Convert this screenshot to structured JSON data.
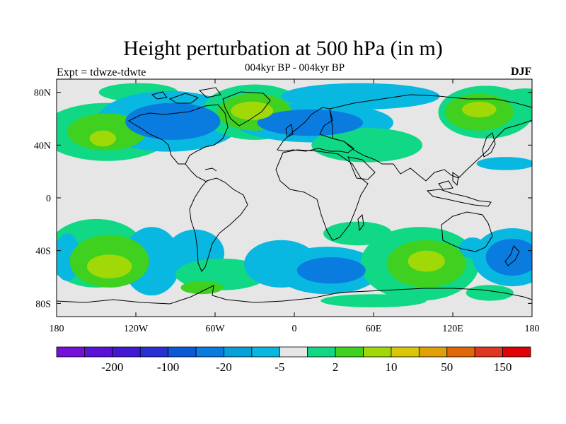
{
  "title": "Height perturbation at 500 hPa (in m)",
  "subtitle": "004kyr BP - 004kyr BP",
  "left_label": "Expt = tdwze-tdwte",
  "right_label": "DJF",
  "map": {
    "lon_range": [
      -180,
      180
    ],
    "lat_range": [
      -90,
      90
    ],
    "lat_ticks": [
      {
        "value": 80,
        "label": "80N"
      },
      {
        "value": 40,
        "label": "40N"
      },
      {
        "value": 0,
        "label": "0"
      },
      {
        "value": -40,
        "label": "40S"
      },
      {
        "value": -80,
        "label": "80S"
      }
    ],
    "lon_ticks": [
      {
        "value": -180,
        "label": "180"
      },
      {
        "value": -120,
        "label": "120W"
      },
      {
        "value": -60,
        "label": "60W"
      },
      {
        "value": 0,
        "label": "0"
      },
      {
        "value": 60,
        "label": "60E"
      },
      {
        "value": 120,
        "label": "120E"
      },
      {
        "value": 180,
        "label": "180"
      }
    ],
    "background_color": "#e6e6e6"
  },
  "colorbar": {
    "colors": [
      "#7510d8",
      "#5a12d8",
      "#4318d2",
      "#2830d4",
      "#0a5ad8",
      "#0a7ce0",
      "#08a0d8",
      "#08b8e0",
      "#e6e6e6",
      "#10d884",
      "#40d020",
      "#a0d808",
      "#d8c808",
      "#e0a008",
      "#e06808",
      "#e03820",
      "#e00008"
    ],
    "labels": [
      {
        "text": "-200",
        "after_index": 1
      },
      {
        "text": "-100",
        "after_index": 3
      },
      {
        "text": "-20",
        "after_index": 5
      },
      {
        "text": "-5",
        "after_index": 7
      },
      {
        "text": "2",
        "after_index": 9
      },
      {
        "text": "10",
        "after_index": 11
      },
      {
        "text": "50",
        "after_index": 13
      },
      {
        "text": "150",
        "after_index": 15
      }
    ]
  },
  "blobs": [
    {
      "lon": 175,
      "lat": 70,
      "rx": 24,
      "ry": 13,
      "level": 1
    },
    {
      "lon": 145,
      "lat": 65,
      "rx": 36,
      "ry": 20,
      "level": 1
    },
    {
      "lon": 140,
      "lat": 65,
      "rx": 26,
      "ry": 14,
      "level": 2
    },
    {
      "lon": 140,
      "lat": 67,
      "rx": 13,
      "ry": 6,
      "level": 3
    },
    {
      "lon": -142,
      "lat": 50,
      "rx": 50,
      "ry": 22,
      "level": 1
    },
    {
      "lon": -142,
      "lat": 50,
      "rx": 30,
      "ry": 14,
      "level": 2
    },
    {
      "lon": -145,
      "lat": 45,
      "rx": 10,
      "ry": 6,
      "level": 3
    },
    {
      "lon": -118,
      "lat": 80,
      "rx": 30,
      "ry": 7,
      "level": 1
    },
    {
      "lon": -95,
      "lat": 58,
      "rx": 55,
      "ry": 23,
      "level": -1
    },
    {
      "lon": -92,
      "lat": 58,
      "rx": 36,
      "ry": 14,
      "level": -2
    },
    {
      "lon": -30,
      "lat": 65,
      "rx": 40,
      "ry": 21,
      "level": 1
    },
    {
      "lon": -30,
      "lat": 65,
      "rx": 28,
      "ry": 14,
      "level": 2
    },
    {
      "lon": -32,
      "lat": 66,
      "rx": 16,
      "ry": 7,
      "level": 3
    },
    {
      "lon": 15,
      "lat": 57,
      "rx": 60,
      "ry": 15,
      "level": -1
    },
    {
      "lon": 12,
      "lat": 57,
      "rx": 40,
      "ry": 10,
      "level": -2
    },
    {
      "lon": 50,
      "lat": 77,
      "rx": 60,
      "ry": 10,
      "level": -1
    },
    {
      "lon": 55,
      "lat": 40,
      "rx": 42,
      "ry": 13,
      "level": 1
    },
    {
      "lon": 160,
      "lat": 26,
      "rx": 22,
      "ry": 5,
      "level": -1
    },
    {
      "lon": 48,
      "lat": -27,
      "rx": 26,
      "ry": 9,
      "level": 1
    },
    {
      "lon": -150,
      "lat": -42,
      "rx": 38,
      "ry": 26,
      "level": 1
    },
    {
      "lon": -140,
      "lat": -48,
      "rx": 30,
      "ry": 20,
      "level": 2
    },
    {
      "lon": -140,
      "lat": -52,
      "rx": 17,
      "ry": 9,
      "level": 3
    },
    {
      "lon": -172,
      "lat": -45,
      "rx": 10,
      "ry": 18,
      "level": -1
    },
    {
      "lon": -108,
      "lat": -48,
      "rx": 22,
      "ry": 26,
      "level": -1
    },
    {
      "lon": -75,
      "lat": -42,
      "rx": 22,
      "ry": 18,
      "level": -1
    },
    {
      "lon": -55,
      "lat": -58,
      "rx": 35,
      "ry": 12,
      "level": 1
    },
    {
      "lon": -70,
      "lat": -68,
      "rx": 16,
      "ry": 5,
      "level": 2
    },
    {
      "lon": -10,
      "lat": -50,
      "rx": 28,
      "ry": 18,
      "level": -1
    },
    {
      "lon": 25,
      "lat": -55,
      "rx": 40,
      "ry": 18,
      "level": -1
    },
    {
      "lon": 28,
      "lat": -55,
      "rx": 26,
      "ry": 10,
      "level": -2
    },
    {
      "lon": 95,
      "lat": -50,
      "rx": 45,
      "ry": 28,
      "level": 1
    },
    {
      "lon": 100,
      "lat": -50,
      "rx": 30,
      "ry": 18,
      "level": 2
    },
    {
      "lon": 100,
      "lat": -48,
      "rx": 14,
      "ry": 8,
      "level": 3
    },
    {
      "lon": 165,
      "lat": -45,
      "rx": 30,
      "ry": 22,
      "level": -1
    },
    {
      "lon": 165,
      "lat": -45,
      "rx": 20,
      "ry": 14,
      "level": -2
    },
    {
      "lon": 135,
      "lat": -38,
      "rx": 10,
      "ry": 8,
      "level": -1
    },
    {
      "lon": 60,
      "lat": -78,
      "rx": 40,
      "ry": 5,
      "level": 1
    },
    {
      "lon": 148,
      "lat": -72,
      "rx": 18,
      "ry": 6,
      "level": 1
    }
  ]
}
